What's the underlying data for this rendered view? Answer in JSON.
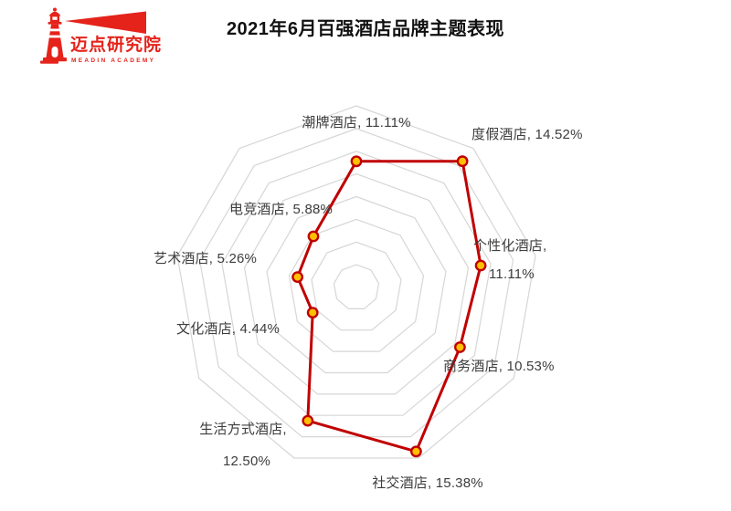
{
  "logo": {
    "name_cn": "迈点研究院",
    "name_en": "MEADIN  ACADEMY",
    "color": "#e5231b"
  },
  "header": {
    "title": "2021年6月百强酒店品牌主题表现"
  },
  "chart_data": {
    "type": "radar",
    "title": "2021年6月百强酒店品牌主题表现",
    "categories": [
      "潮牌酒店",
      "度假酒店",
      "个性化酒店",
      "商务酒店",
      "社交酒店",
      "生活方式酒店",
      "文化酒店",
      "艺术酒店",
      "电竞酒店"
    ],
    "values": [
      11.11,
      14.52,
      11.11,
      10.53,
      15.38,
      12.5,
      4.44,
      5.26,
      5.88
    ],
    "unit": "%",
    "axis_max": 16,
    "ring_step": 2,
    "grid": true,
    "legend": false,
    "start_axis": "top",
    "direction": "clockwise",
    "labels": [
      {
        "lines": [
          "潮牌酒店, 11.11%"
        ]
      },
      {
        "lines": [
          "度假酒店, 14.52%"
        ]
      },
      {
        "lines": [
          "个性化酒店,",
          "11.11%"
        ]
      },
      {
        "lines": [
          "商务酒店, 10.53%"
        ]
      },
      {
        "lines": [
          "社交酒店, 15.38%"
        ]
      },
      {
        "lines": [
          "生活方式酒店,",
          "12.50%"
        ]
      },
      {
        "lines": [
          "文化酒店, 4.44%"
        ]
      },
      {
        "lines": [
          "艺术酒店, 5.26%"
        ]
      },
      {
        "lines": [
          "电竞酒店, 5.88%"
        ]
      }
    ],
    "colors": {
      "line": "#c00000",
      "marker_fill": "#ffc000",
      "marker_stroke": "#c00000",
      "grid": "#d6d6d6",
      "label_text": "#3d3d3d"
    }
  }
}
